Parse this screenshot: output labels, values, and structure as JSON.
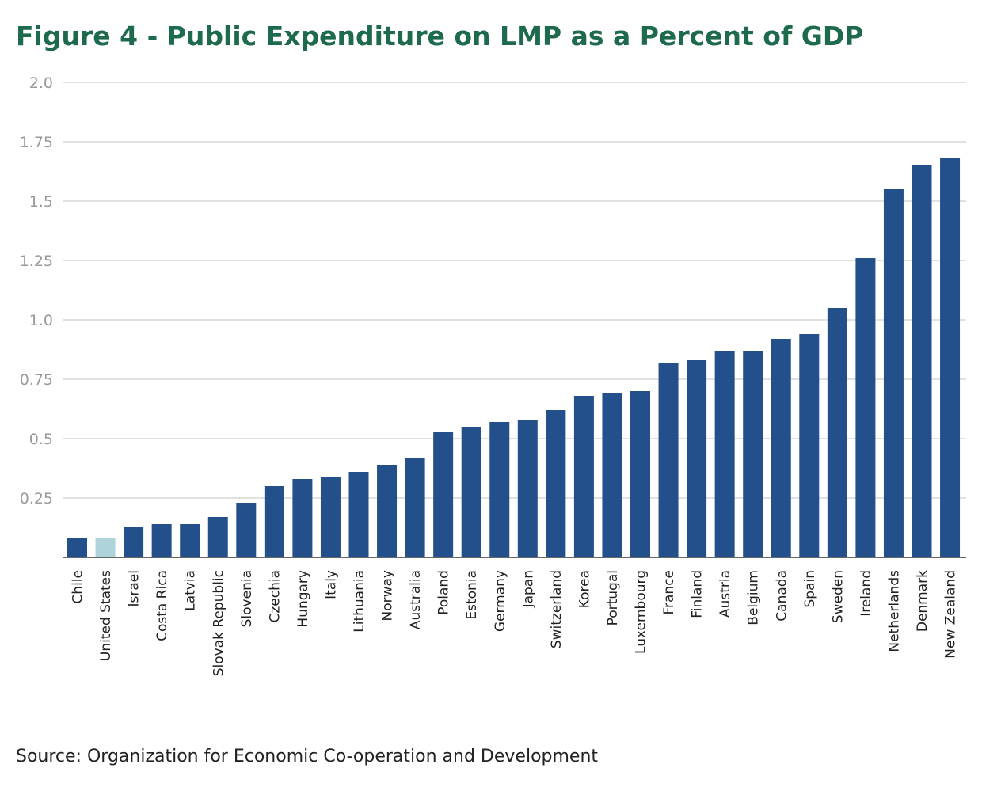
{
  "chart_data": {
    "type": "bar",
    "title": "Figure 4 - Public Expenditure on LMP as a Percent of GDP",
    "source": "Source: Organization for Economic Co-operation and Development",
    "xlabel": "",
    "ylabel": "",
    "ylim": [
      0,
      2.0
    ],
    "yticks": [
      {
        "value": 0.25,
        "label": "0.25"
      },
      {
        "value": 0.5,
        "label": "0.5"
      },
      {
        "value": 0.75,
        "label": "0.75"
      },
      {
        "value": 1.0,
        "label": "1.0"
      },
      {
        "value": 1.25,
        "label": "1.25"
      },
      {
        "value": 1.5,
        "label": "1.5"
      },
      {
        "value": 1.75,
        "label": "1.75"
      },
      {
        "value": 2.0,
        "label": "2.0"
      }
    ],
    "grid": true,
    "legend": "none",
    "bar_color": "#23508b",
    "highlight_color": "#aed4da",
    "highlight_category": "United States",
    "categories": [
      "Chile",
      "United States",
      "Israel",
      "Costa Rica",
      "Latvia",
      "Slovak Republic",
      "Slovenia",
      "Czechia",
      "Hungary",
      "Italy",
      "Lithuania",
      "Norway",
      "Australia",
      "Poland",
      "Estonia",
      "Germany",
      "Japan",
      "Switzerland",
      "Korea",
      "Portugal",
      "Luxembourg",
      "France",
      "Finland",
      "Austria",
      "Belgium",
      "Canada",
      "Spain",
      "Sweden",
      "Ireland",
      "Netherlands",
      "Denmark",
      "New Zealand"
    ],
    "values": [
      0.08,
      0.08,
      0.13,
      0.14,
      0.14,
      0.17,
      0.23,
      0.3,
      0.33,
      0.34,
      0.36,
      0.39,
      0.42,
      0.53,
      0.55,
      0.57,
      0.58,
      0.62,
      0.68,
      0.69,
      0.7,
      0.82,
      0.83,
      0.87,
      0.87,
      0.92,
      0.94,
      1.05,
      1.26,
      1.55,
      1.65,
      1.68
    ]
  }
}
